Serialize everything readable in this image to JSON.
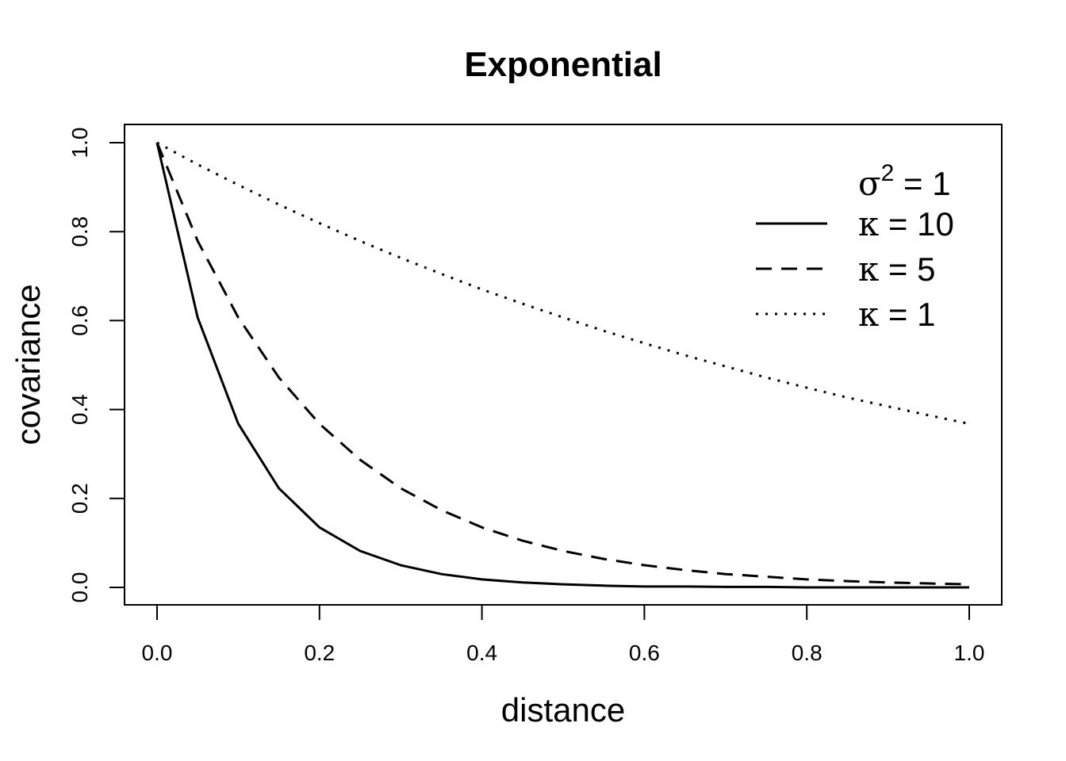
{
  "chart_data": {
    "type": "line",
    "title": "Exponential",
    "xlabel": "distance",
    "ylabel": "covariance",
    "xlim": [
      0.0,
      1.0
    ],
    "ylim": [
      0.0,
      1.0
    ],
    "xticks": [
      "0.0",
      "0.2",
      "0.4",
      "0.6",
      "0.8",
      "1.0"
    ],
    "yticks": [
      "0.0",
      "0.2",
      "0.4",
      "0.6",
      "0.8",
      "1.0"
    ],
    "grid": false,
    "legend_position": "top-right",
    "legend": {
      "header_symbol": "σ",
      "header_exp": "2",
      "header_rest": " = 1",
      "entries": [
        {
          "symbol": "κ",
          "text": " = 10"
        },
        {
          "symbol": "κ",
          "text": " = 5"
        },
        {
          "symbol": "κ",
          "text": " = 1"
        }
      ]
    },
    "x": [
      0.0,
      0.05,
      0.1,
      0.15,
      0.2,
      0.25,
      0.3,
      0.35,
      0.4,
      0.45,
      0.5,
      0.55,
      0.6,
      0.65,
      0.7,
      0.75,
      0.8,
      0.85,
      0.9,
      0.95,
      1.0
    ],
    "series": [
      {
        "kappa": 10,
        "style": "solid",
        "values": [
          1.0,
          0.607,
          0.368,
          0.223,
          0.135,
          0.082,
          0.05,
          0.03,
          0.018,
          0.011,
          0.007,
          0.004,
          0.002,
          0.002,
          0.001,
          0.001,
          0.0,
          0.0,
          0.0,
          0.0,
          0.0
        ]
      },
      {
        "kappa": 5,
        "style": "dashed",
        "values": [
          1.0,
          0.779,
          0.607,
          0.472,
          0.368,
          0.287,
          0.223,
          0.174,
          0.135,
          0.105,
          0.082,
          0.064,
          0.05,
          0.039,
          0.03,
          0.024,
          0.018,
          0.014,
          0.011,
          0.009,
          0.007
        ]
      },
      {
        "kappa": 1,
        "style": "dotted",
        "values": [
          1.0,
          0.951,
          0.905,
          0.861,
          0.819,
          0.779,
          0.741,
          0.705,
          0.67,
          0.638,
          0.607,
          0.577,
          0.549,
          0.522,
          0.497,
          0.472,
          0.449,
          0.427,
          0.407,
          0.387,
          0.368
        ]
      }
    ]
  }
}
